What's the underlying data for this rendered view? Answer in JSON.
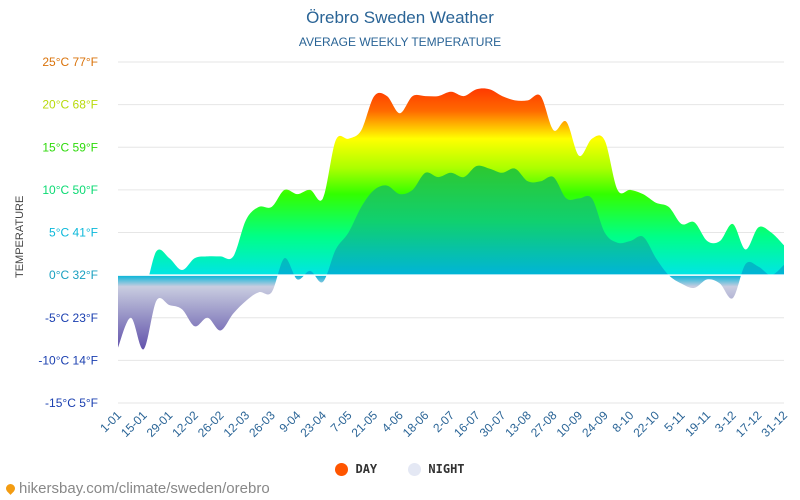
{
  "chart_data": {
    "type": "area",
    "title": "Örebro Sweden Weather",
    "subtitle": "AVERAGE WEEKLY TEMPERATURE",
    "ylabel": "TEMPERATURE",
    "ylim": [
      -15,
      25
    ],
    "y_ticks": [
      {
        "value": 25,
        "label": "25°C 77°F"
      },
      {
        "value": 20,
        "label": "20°C 68°F"
      },
      {
        "value": 15,
        "label": "15°C 59°F"
      },
      {
        "value": 10,
        "label": "10°C 50°F"
      },
      {
        "value": 5,
        "label": "5°C 41°F"
      },
      {
        "value": 0,
        "label": "0°C 32°F"
      },
      {
        "value": -5,
        "label": "-5°C 23°F"
      },
      {
        "value": -10,
        "label": "-10°C 14°F"
      },
      {
        "value": -15,
        "label": "-15°C 5°F"
      }
    ],
    "x_ticks": [
      "1-01",
      "15-01",
      "29-01",
      "12-02",
      "26-02",
      "12-03",
      "26-03",
      "9-04",
      "23-04",
      "7-05",
      "21-05",
      "4-06",
      "18-06",
      "2-07",
      "16-07",
      "30-07",
      "13-08",
      "27-08",
      "10-09",
      "24-09",
      "8-10",
      "22-10",
      "5-11",
      "19-11",
      "3-12",
      "17-12",
      "31-12"
    ],
    "series": [
      {
        "name": "DAY",
        "values": [
          -1.5,
          -1,
          -2,
          2.8,
          2,
          0.6,
          2,
          2.2,
          2.2,
          2.2,
          6.5,
          8,
          8,
          10,
          9.5,
          10,
          9,
          15.8,
          16,
          17,
          21,
          21,
          19,
          21,
          21,
          21,
          21.5,
          21,
          21.8,
          21.8,
          21,
          20.5,
          20.5,
          21,
          17,
          18,
          14,
          16,
          15.8,
          10,
          10,
          9.5,
          8.5,
          8,
          6,
          6.2,
          4,
          4,
          6,
          3,
          5.6,
          5,
          3.5
        ]
      },
      {
        "name": "NIGHT",
        "values": [
          -8.5,
          -5,
          -8.7,
          -3,
          -3.5,
          -4,
          -6,
          -5,
          -6.5,
          -4.5,
          -3,
          -2,
          -2,
          2,
          -0.5,
          0.5,
          -0.8,
          3,
          5,
          8,
          10,
          10.5,
          9.5,
          10,
          12,
          11.5,
          12,
          11.5,
          12.8,
          12.5,
          12,
          12.5,
          11,
          11,
          11.5,
          9,
          9,
          9,
          5,
          3.8,
          4,
          4.5,
          2,
          0,
          -1,
          -1.5,
          -0.5,
          -1,
          -2.7,
          1.3,
          1,
          0,
          1.2
        ]
      }
    ],
    "legend": [
      {
        "name": "DAY",
        "color": "#ff5500"
      },
      {
        "name": "NIGHT",
        "color": "#e4e8f4"
      }
    ]
  },
  "source_label": "hikersbay.com/climate/sweden/orebro"
}
